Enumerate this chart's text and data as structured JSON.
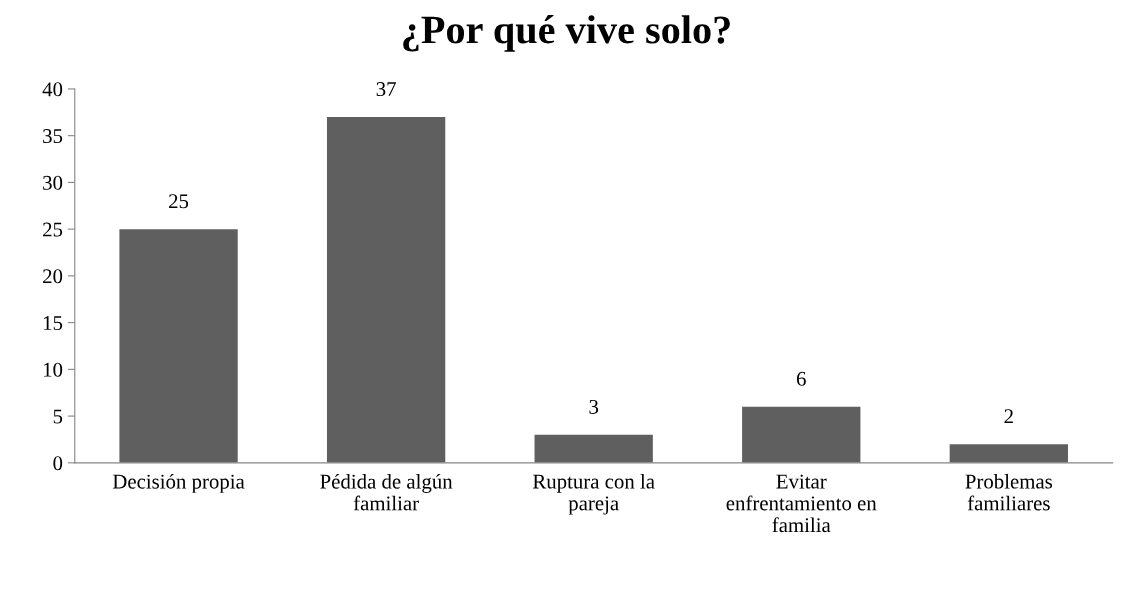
{
  "chart_data": {
    "type": "bar",
    "title": "¿Por qué vive solo?",
    "categories": [
      "Decisión propia",
      "Pédida de algún familiar",
      "Ruptura con la pareja",
      "Evitar enfrentamiento en familia",
      "Problemas familiares"
    ],
    "values": [
      25,
      37,
      3,
      6,
      2
    ],
    "color": "#5f5f5f",
    "data_labels": true,
    "ylim": [
      0,
      40
    ],
    "yticks": [
      0,
      5,
      10,
      15,
      20,
      25,
      30,
      35,
      40
    ],
    "grid": false,
    "legend": false
  }
}
